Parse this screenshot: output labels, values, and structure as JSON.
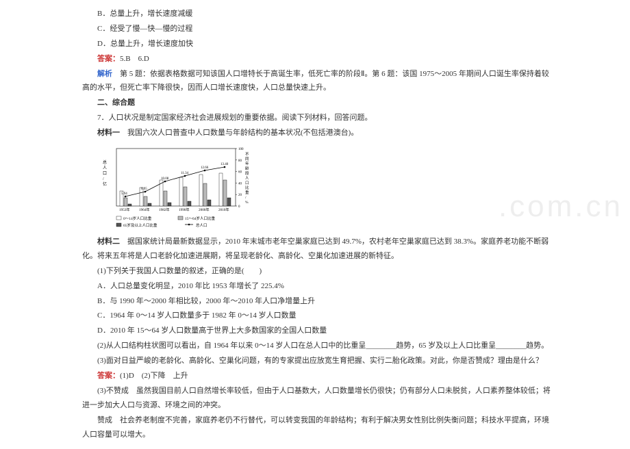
{
  "options": {
    "B": "B．总量上升，增长速度减缓",
    "C": "C．经受了慢—快—慢的过程",
    "D": "D．总量上升，增长速度加快"
  },
  "answer1": {
    "label": "答案：",
    "text": "5.B　6.D"
  },
  "analysis": {
    "label": "解析",
    "text": "　第 5 题：依据表格数据可知该国人口增特长于高诞生率，低死亡率的阶段Ⅱ。第 6 题：该国 1975～2005 年期间人口诞生率保持着较高的水平，但死亡率下降很快，因而人口增长速度快，人口总量快速上升。"
  },
  "section2": "二、综合题",
  "q7": {
    "stem": "7．人口状况是制定国家经济社会进展规划的重要依据。阅读下列材料，回答问题。",
    "mat1": {
      "label": "材料一",
      "text": "　我国六次人口普查中人口数量与年龄结构的基本状况(不包括港澳台)。"
    }
  },
  "chart": {
    "years": [
      "1953年",
      "1964年",
      "1982年",
      "1990年",
      "2000年",
      "2010年"
    ],
    "total": [
      5.94,
      6.95,
      10.08,
      11.34,
      12.66,
      13.4
    ],
    "points_y": [
      70,
      63,
      48,
      40,
      32,
      27
    ],
    "bar_groups": [
      [
        22,
        12,
        3
      ],
      [
        27,
        14,
        4
      ],
      [
        38,
        22,
        5
      ],
      [
        42,
        28,
        7
      ],
      [
        46,
        33,
        9
      ],
      [
        48,
        38,
        12
      ]
    ],
    "bar_colors": [
      "#ffffff",
      "#bbbbbb",
      "#555555"
    ],
    "line_color": "#000000",
    "axis_color": "#000000",
    "bg": "#ffffff",
    "left_axis_label": "总人口/亿",
    "right_axis_label": "不同年龄段人口比重/%",
    "right_ticks": [
      "0",
      "20",
      "40",
      "60",
      "80",
      "100"
    ],
    "legend": [
      "0～14岁人口比重",
      "15～64岁人口比重",
      "65岁及以上人口比重",
      "总人口"
    ]
  },
  "mat2": {
    "label": "材料二",
    "text": "　据国家统计局最新数据显示，2010 年末城市老年空巢家庭已达到 49.7%，农村老年空巢家庭已达到 38.3%。家庭养老功能不断弱化。将来五年将是人口老龄化加速进展期，将呈现老龄化、高龄化、空巢化加速进展的新特征。"
  },
  "q7_sub1": {
    "stem": "(1)下列关于我国人口数量的叙述，正确的是(　　)",
    "A": "A．人口总量变化明显，2010 年比 1953 年增长了 225.4%",
    "B": "B．与 1990 年～2000 年相比较，2000 年～2010 年人口净增量上升",
    "C": "C．1964 年 0～14 岁人口数量多于 1982 年 0～14 岁人口数量",
    "D": "D．2010 年 15～64 岁人口数量高于世界上大多数国家的全国人口数量"
  },
  "q7_sub2": "(2)从人口结构柱状图可以看出，自 1964 年以来 0～14 岁人口在总人口中的比重呈________趋势，65 岁及以上人口比重呈________趋势。",
  "q7_sub3": "(3)面对日益严峻的老龄化、高龄化、空巢化问题，有的专家提出应放宽生育把握、实行二胎化政策。对此，你是否赞成？理由是什么？",
  "answer2": {
    "label": "答案：",
    "text": "(1)D　(2)下降　上升"
  },
  "ans_part3a": "(3)不赞成　虽然我国目前人口自然增长率较低，但由于人口基数大，人口数量增长仍很快；仍有部分人口未脱贫，人口素养整体较低；将进一步加大人口与资源、环境之间的冲突。",
  "ans_part3b": "赞成　社会养老制度不完善，家庭养老仍不行替代，可以转变我国的年龄结构；有利于解决男女性别比例失衡问题；科技水平提高，环境人口容量可以增大。",
  "watermark": ".com.cn"
}
